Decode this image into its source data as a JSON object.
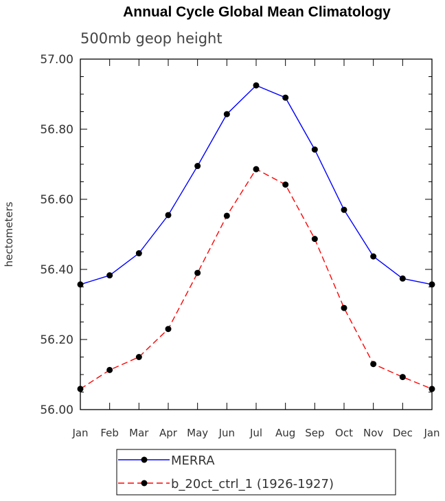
{
  "chart_data": {
    "type": "line",
    "title": "Annual Cycle Global Mean Climatology",
    "subtitle": "500mb geop height",
    "xlabel": "",
    "ylabel": "hectometers",
    "categories": [
      "Jan",
      "Feb",
      "Mar",
      "Apr",
      "May",
      "Jun",
      "Jul",
      "Aug",
      "Sep",
      "Oct",
      "Nov",
      "Dec",
      "Jan"
    ],
    "ylim": [
      56.0,
      57.0
    ],
    "yticks": [
      "56.00",
      "56.20",
      "56.40",
      "56.60",
      "56.80",
      "57.00"
    ],
    "grid": false,
    "legend_position": "bottom",
    "series": [
      {
        "name": "MERRA",
        "color": "#0000ff",
        "dash": "solid",
        "values": [
          56.357,
          56.383,
          56.446,
          56.555,
          56.695,
          56.843,
          56.925,
          56.89,
          56.742,
          56.57,
          56.437,
          56.374,
          56.357
        ]
      },
      {
        "name": "b_20ct_ctrl_1 (1926-1927)",
        "color": "#ff0000",
        "dash": "dashed",
        "values": [
          56.059,
          56.113,
          56.15,
          56.23,
          56.39,
          56.553,
          56.686,
          56.642,
          56.487,
          56.29,
          56.13,
          56.093,
          56.059
        ]
      }
    ]
  }
}
